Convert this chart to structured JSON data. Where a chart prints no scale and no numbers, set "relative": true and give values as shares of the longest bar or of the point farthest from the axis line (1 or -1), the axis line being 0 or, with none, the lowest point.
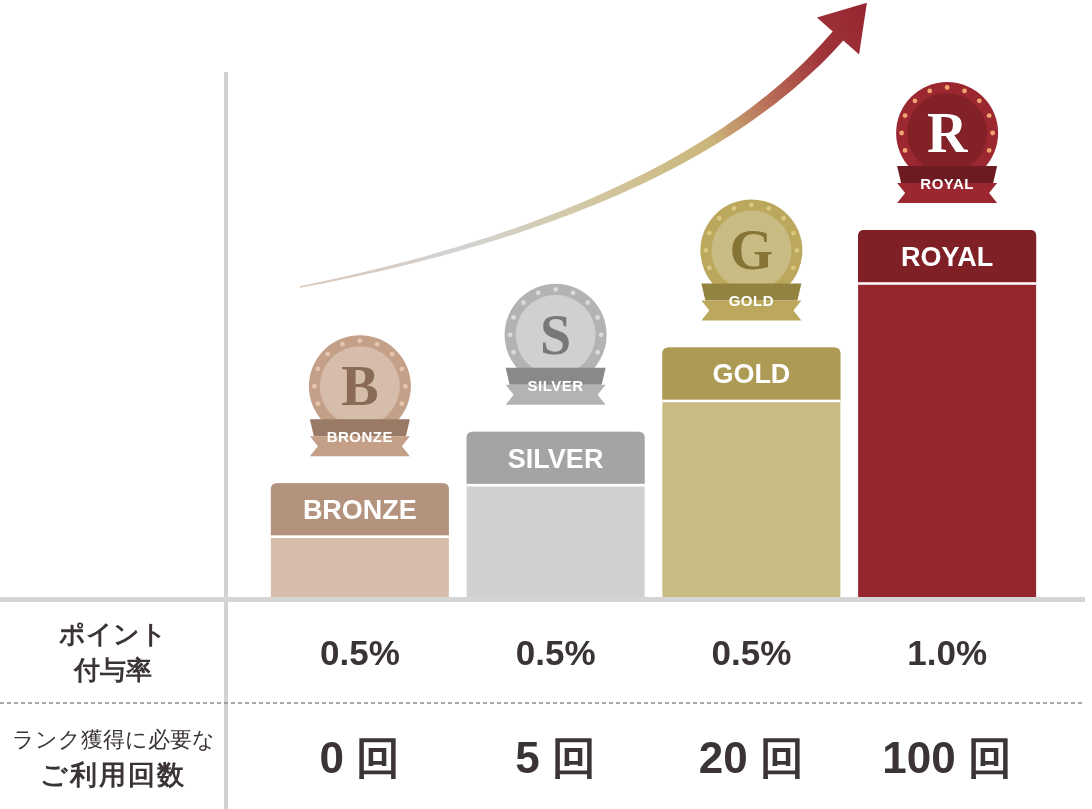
{
  "chart_data": {
    "type": "bar",
    "relative": true,
    "categories": [
      null,
      null,
      null,
      null
    ],
    "values": [
      0.31,
      0.45,
      0.68,
      1
    ],
    "colors": [
      "#d6bcab",
      "#d0d0d2",
      "#c9bb84",
      "#95262e"
    ],
    "annotations": [
      "BRONZE",
      "B",
      "BRONZE",
      "SILVER",
      "S",
      "SILVER",
      "GOLD",
      "G",
      "GOLD",
      "ROYAL",
      "R",
      "ROYAL",
      "ポイント",
      "付与率",
      "0.5%",
      "0.5%",
      "0.5%",
      "1.0%",
      "ランク獲得に必要な",
      "ご利用回数",
      "0 回",
      "5 回",
      "20 回",
      "100 回"
    ]
  }
}
